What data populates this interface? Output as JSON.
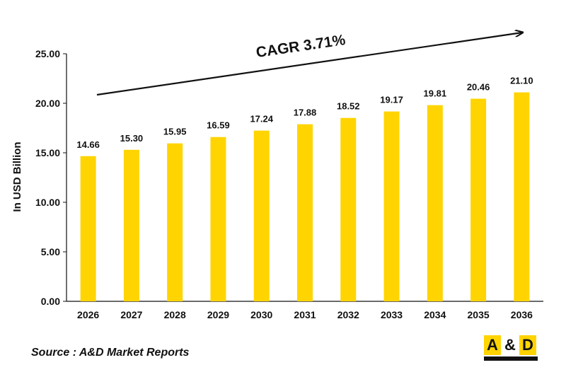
{
  "chart_data": {
    "type": "bar",
    "categories": [
      "2026",
      "2027",
      "2028",
      "2029",
      "2030",
      "2031",
      "2032",
      "2033",
      "2034",
      "2035",
      "2036"
    ],
    "values": [
      14.66,
      15.3,
      15.95,
      16.59,
      17.24,
      17.88,
      18.52,
      19.17,
      19.81,
      20.46,
      21.1
    ],
    "value_labels": [
      "14.66",
      "15.30",
      "15.95",
      "16.59",
      "17.24",
      "17.88",
      "18.52",
      "19.17",
      "19.81",
      "20.46",
      "21.10"
    ],
    "ylabel": "In USD Billion",
    "ylim": [
      0,
      25
    ],
    "yticks": [
      "0.00",
      "5.00",
      "10.00",
      "15.00",
      "20.00",
      "25.00"
    ],
    "grid": false,
    "bar_color": "#ffd400",
    "annotation": "CAGR 3.71%"
  },
  "source": "Source : A&D Market Reports",
  "logo": {
    "letter_a": "A",
    "amp": "&",
    "letter_d": "D"
  }
}
